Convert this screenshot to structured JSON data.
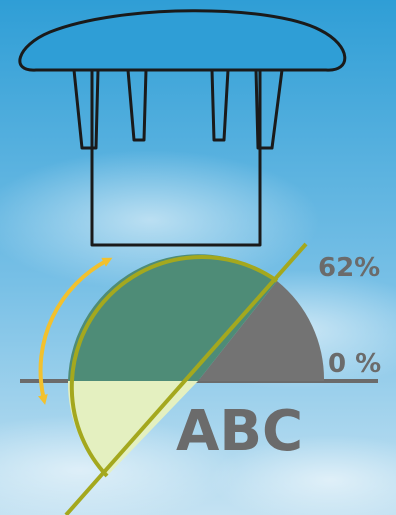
{
  "labels": {
    "top_percent": "62%",
    "zero_percent": "0 %",
    "logo_text": "ABC"
  },
  "colors": {
    "sky_top": "#2f9fd8",
    "sky_bottom": "#bfe0f2",
    "outline": "#1a1a1a",
    "olive_line": "#a4a81e",
    "dark_green": "#4e8c77",
    "pale_green": "#e4f0c0",
    "gray": "#737373",
    "yellow_arrow": "#f2c12e",
    "text_gray": "#6b6b6b"
  },
  "icons": {
    "rotation_arrow": "curved-double-arrow-icon",
    "plug": "plug-cap-icon"
  }
}
